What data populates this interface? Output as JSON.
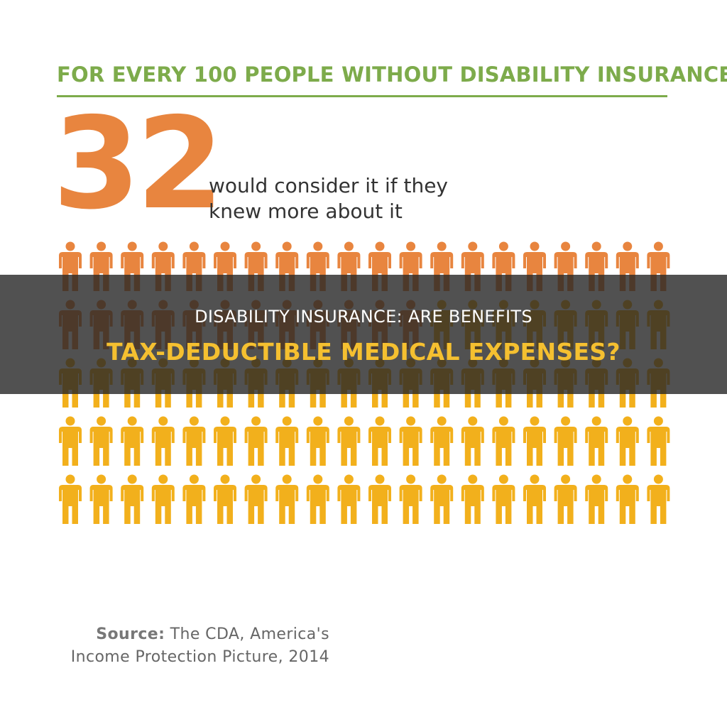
{
  "infographic": {
    "headline": "FOR EVERY 100 PEOPLE WITHOUT DISABILITY INSURANCE...",
    "big_number": "32",
    "stat_line1": "would consider it if they",
    "stat_line2": "knew more about it",
    "source_label": "Source:",
    "source_rest": " The CDA, America's",
    "source_line2": "Income Protection Picture, 2014"
  },
  "people_grid": {
    "total": 100,
    "per_row": 20,
    "highlighted": 32,
    "highlight_color": "#e8853f",
    "base_color": "#f2b01c"
  },
  "banner": {
    "line1": "DISABILITY INSURANCE: ARE BENEFITS",
    "line2": "TAX-DEDUCTIBLE MEDICAL EXPENSES?"
  },
  "colors": {
    "accent_green": "#7dab4b",
    "accent_orange": "#e8853f",
    "accent_yellow": "#f2b01c",
    "banner_title": "#f5c030"
  }
}
